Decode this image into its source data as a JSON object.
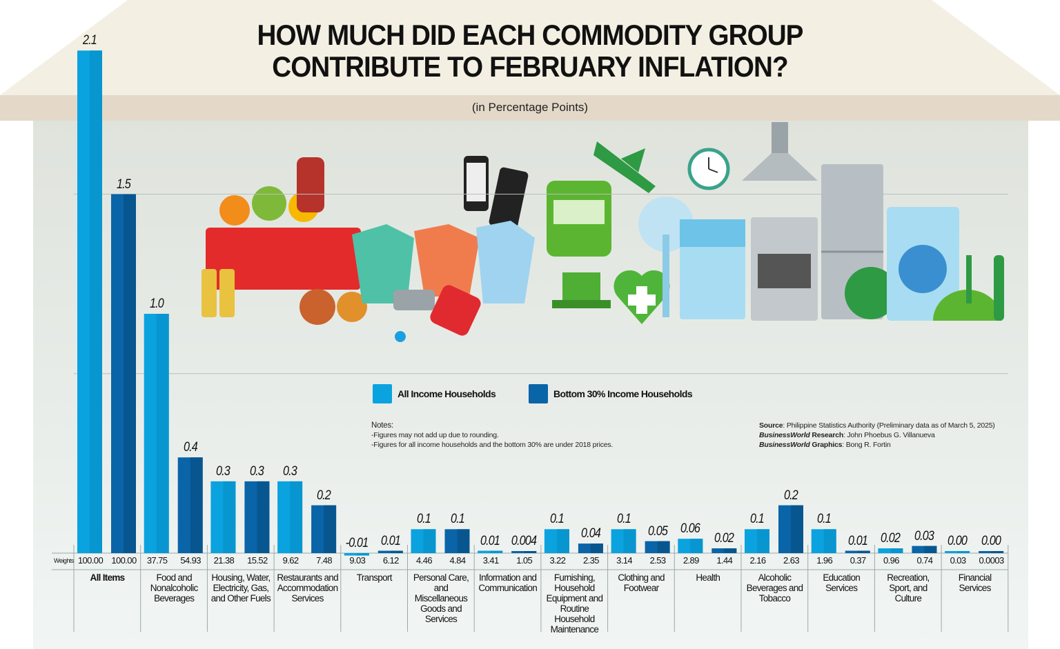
{
  "header": {
    "title_line1": "HOW MUCH DID EACH COMMODITY GROUP",
    "title_line2": "CONTRIBUTE TO FEBRUARY INFLATION?",
    "subtitle": "(in Percentage Points)"
  },
  "colors": {
    "all_income": "#0aa3e0",
    "bottom_30": "#0a64a8",
    "roof": "#f3efe2",
    "band": "#e4d8c8",
    "body": "#e8ece8"
  },
  "legend": [
    {
      "label": "All Income Households",
      "color": "#0aa3e0"
    },
    {
      "label": "Bottom 30% Income Households",
      "color": "#0a64a8"
    }
  ],
  "notes": {
    "heading": "Notes:",
    "lines": [
      "-Figures may not add up due to rounding.",
      "-Figures for all income households and the bottom 30% are under 2018 prices."
    ]
  },
  "credits": {
    "source_label": "Source",
    "source_text": ": Philippine Statistics Authority (Preliminary data as of March 5, 2025)",
    "research_brand": "BusinessWorld",
    "research_label": " Research",
    "research_text": ": John Phoebus G. Villanueva",
    "graphics_brand": "BusinessWorld",
    "graphics_label": " Graphics",
    "graphics_text": ": Bong R. Fortin"
  },
  "illustrations": [
    "grocery-basket",
    "mobile-phones",
    "clothing",
    "faucet",
    "fuel-nozzle",
    "bus",
    "airplane",
    "graduation-laptop",
    "health-heart",
    "electric-fan",
    "wall-clock",
    "dishwasher",
    "range-hood",
    "stove-oven",
    "refrigerator",
    "food-plate",
    "washing-machine",
    "restaurant-cloche"
  ],
  "chart_data": {
    "type": "bar",
    "title": "HOW MUCH DID EACH COMMODITY GROUP CONTRIBUTE TO FEBRUARY INFLATION?",
    "subtitle": "(in Percentage Points)",
    "weights_label": "Weights",
    "ylim": [
      -0.05,
      2.25
    ],
    "grid": true,
    "legend_position": "middle",
    "categories": [
      "All Items",
      "Food and Nonalcoholic Beverages",
      "Housing, Water, Electricity, Gas, and Other Fuels",
      "Restaurants and Accommodation Services",
      "Transport",
      "Personal Care, and Miscellaneous Goods and Services",
      "Information and Communication",
      "Furnishing, Household Equipment and Routine Household Maintenance",
      "Clothing and Footwear",
      "Health",
      "Alcoholic Beverages and Tobacco",
      "Education Services",
      "Recreation, Sport, and Culture",
      "Financial Services"
    ],
    "series": [
      {
        "name": "All Income Households",
        "values": [
          2.1,
          1.0,
          0.3,
          0.3,
          -0.01,
          0.1,
          0.01,
          0.1,
          0.1,
          0.06,
          0.1,
          0.1,
          0.02,
          0.0
        ],
        "labels": [
          "2.1",
          "1.0",
          "0.3",
          "0.3",
          "-0.01",
          "0.1",
          "0.01",
          "0.1",
          "0.1",
          "0.06",
          "0.1",
          "0.1",
          "0.02",
          "0.00"
        ],
        "weights": [
          "100.00",
          "37.75",
          "21.38",
          "9.62",
          "9.03",
          "4.46",
          "3.41",
          "3.22",
          "3.14",
          "2.89",
          "2.16",
          "1.96",
          "0.96",
          "0.03"
        ]
      },
      {
        "name": "Bottom 30% Income Households",
        "values": [
          1.5,
          0.4,
          0.3,
          0.2,
          0.01,
          0.1,
          0.004,
          0.04,
          0.05,
          0.02,
          0.2,
          0.01,
          0.03,
          0.0
        ],
        "labels": [
          "1.5",
          "0.4",
          "0.3",
          "0.2",
          "0.01",
          "0.1",
          "0.004",
          "0.04",
          "0.05",
          "0.02",
          "0.2",
          "0.01",
          "0.03",
          "0.00"
        ],
        "weights": [
          "100.00",
          "54.93",
          "15.52",
          "7.48",
          "6.12",
          "4.84",
          "1.05",
          "2.35",
          "2.53",
          "1.44",
          "2.63",
          "0.37",
          "0.74",
          "0.0003"
        ]
      }
    ]
  }
}
